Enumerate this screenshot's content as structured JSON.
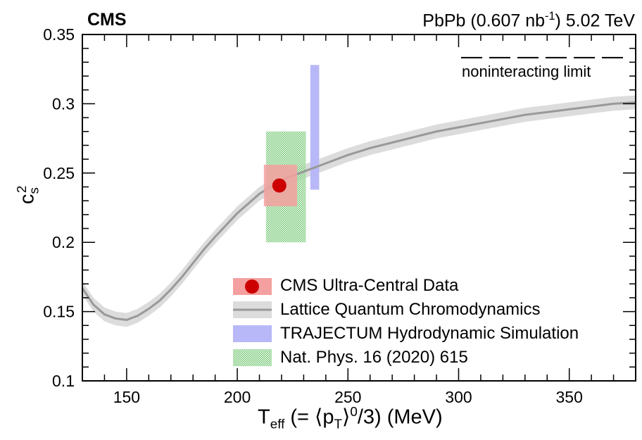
{
  "header": {
    "experiment": "CMS",
    "collision": "PbPb (0.607 nb",
    "collision_sup": "-1",
    "collision_tail": ") 5.02 TeV"
  },
  "axes": {
    "x_label_main": "T",
    "x_label_sub": "eff",
    "x_label_mid": " (= ⟨p",
    "x_label_sub2": "T",
    "x_label_mid2": "⟩",
    "x_label_sup": "0",
    "x_label_end": "/3) (MeV)",
    "y_label_main": "c",
    "y_label_sub": "s",
    "y_label_sup": "2"
  },
  "legend": {
    "cms": "CMS Ultra-Central Data",
    "lqcd": "Lattice Quantum Chromodynamics",
    "trajectum": "TRAJECTUM Hydrodynamic Simulation",
    "natphys": "Nat. Phys. 16 (2020) 615"
  },
  "annotation": {
    "noninteracting": "noninteracting limit"
  },
  "colors": {
    "cms_box": "#f4a0a0",
    "cms_point": "#cc0000",
    "lqcd_band": "#dcdcdc",
    "lqcd_line": "#999999",
    "trajectum": "#b8b8f8",
    "natphys": "#4db84d"
  },
  "chart_data": {
    "type": "line",
    "xlim": [
      130,
      380
    ],
    "ylim": [
      0.1,
      0.35
    ],
    "x_ticks": [
      150,
      200,
      250,
      300,
      350
    ],
    "y_ticks": [
      0.1,
      0.15,
      0.2,
      0.25,
      0.3,
      0.35
    ],
    "y_tick_labels": [
      "0.1",
      "0.15",
      "0.2",
      "0.25",
      "0.3",
      "0.35"
    ],
    "noninteracting_limit": 0.3333,
    "series": [
      {
        "name": "Lattice Quantum Chromodynamics",
        "x": [
          130,
          135,
          140,
          145,
          150,
          155,
          160,
          165,
          170,
          175,
          180,
          185,
          190,
          200,
          210,
          220,
          230,
          240,
          250,
          260,
          270,
          280,
          290,
          300,
          310,
          320,
          330,
          340,
          350,
          360,
          370,
          380
        ],
        "y": [
          0.167,
          0.155,
          0.148,
          0.145,
          0.144,
          0.147,
          0.152,
          0.158,
          0.166,
          0.175,
          0.185,
          0.195,
          0.204,
          0.221,
          0.235,
          0.245,
          0.251,
          0.257,
          0.263,
          0.268,
          0.272,
          0.276,
          0.28,
          0.283,
          0.286,
          0.289,
          0.292,
          0.294,
          0.296,
          0.298,
          0.3,
          0.301
        ],
        "band": 0.005
      },
      {
        "name": "CMS Ultra-Central Data",
        "x": 219,
        "y": 0.241,
        "x_range": [
          212,
          227
        ],
        "y_range": [
          0.226,
          0.256
        ]
      },
      {
        "name": "TRAJECTUM Hydrodynamic Simulation",
        "x_range": [
          233,
          237
        ],
        "y_range": [
          0.238,
          0.328
        ]
      },
      {
        "name": "Nat. Phys. 16 (2020) 615",
        "x_range": [
          213,
          231
        ],
        "y_range": [
          0.2,
          0.28
        ]
      }
    ]
  }
}
